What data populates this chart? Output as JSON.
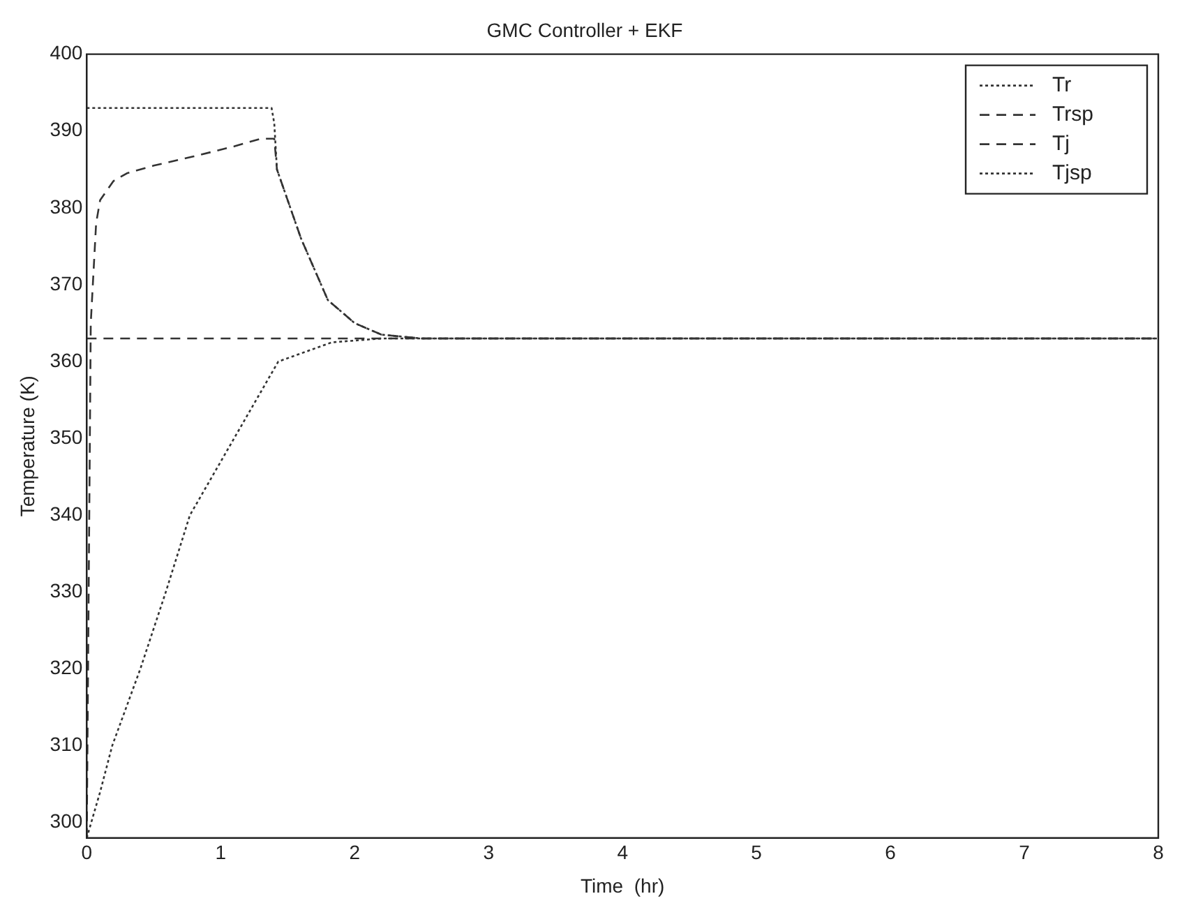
{
  "chart_data": {
    "type": "line",
    "title": "GMC Controller + EKF",
    "xlabel": "Time  (hr)",
    "ylabel": "Temperature (K)",
    "xlim": [
      0,
      8
    ],
    "ylim": [
      298,
      400
    ],
    "xticks": [
      0,
      1,
      2,
      3,
      4,
      5,
      6,
      7,
      8
    ],
    "yticks": [
      300,
      310,
      320,
      330,
      340,
      350,
      360,
      370,
      380,
      390,
      400
    ],
    "grid": false,
    "legend": "top right",
    "marker": "none",
    "series": [
      {
        "name": "Tr",
        "color": "#333333",
        "line_style": "dotted",
        "x": [
          0,
          0.1,
          0.19,
          0.4,
          0.59,
          0.77,
          1.1,
          1.43,
          1.83,
          2.2,
          3,
          8
        ],
        "values": [
          298,
          304,
          310,
          320,
          330,
          340,
          350,
          360,
          362.5,
          363,
          363,
          363
        ]
      },
      {
        "name": "Trsp",
        "color": "#333333",
        "line_style": "dashed",
        "x": [
          0,
          8
        ],
        "values": [
          363,
          363
        ]
      },
      {
        "name": "Tj",
        "color": "#333333",
        "line_style": "dashed",
        "x": [
          0,
          0.03,
          0.07,
          0.1,
          0.2,
          0.3,
          0.5,
          0.8,
          1.1,
          1.3,
          1.4,
          1.42,
          1.5,
          1.6,
          1.8,
          2.0,
          2.2,
          2.5,
          8
        ],
        "values": [
          298,
          365,
          378,
          381,
          383.5,
          384.5,
          385.5,
          386.7,
          388,
          389,
          389,
          385,
          381,
          376,
          368,
          365,
          363.5,
          363,
          363
        ]
      },
      {
        "name": "Tjsp",
        "color": "#333333",
        "line_style": "dotted",
        "x": [
          0,
          1.38,
          1.4,
          1.42,
          1.5,
          1.6,
          1.8,
          2.0,
          2.2,
          2.5,
          8
        ],
        "values": [
          393,
          393,
          391,
          385,
          381,
          376,
          368,
          365,
          363.5,
          363,
          363
        ]
      }
    ]
  }
}
